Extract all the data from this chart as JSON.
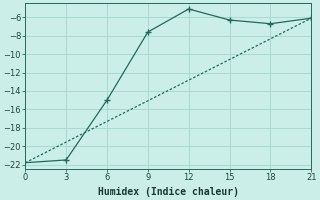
{
  "xlabel": "Humidex (Indice chaleur)",
  "background_color": "#cceee8",
  "grid_color": "#aad8d0",
  "line_color": "#1e6b5e",
  "xlim": [
    0,
    21
  ],
  "ylim": [
    -22.5,
    -4.5
  ],
  "xticks": [
    0,
    3,
    6,
    9,
    12,
    15,
    18,
    21
  ],
  "yticks": [
    -22,
    -20,
    -18,
    -16,
    -14,
    -12,
    -10,
    -8,
    -6
  ],
  "line1_x": [
    0,
    3,
    6,
    9,
    12,
    15,
    18,
    21
  ],
  "line1_y": [
    -21.8,
    -21.5,
    -15.0,
    -7.6,
    -5.1,
    -6.3,
    -6.7,
    -6.1
  ],
  "line1_marker_mask": [
    false,
    true,
    true,
    true,
    true,
    true,
    true,
    true
  ],
  "line2_x": [
    0,
    21
  ],
  "line2_y": [
    -21.8,
    -6.1
  ]
}
